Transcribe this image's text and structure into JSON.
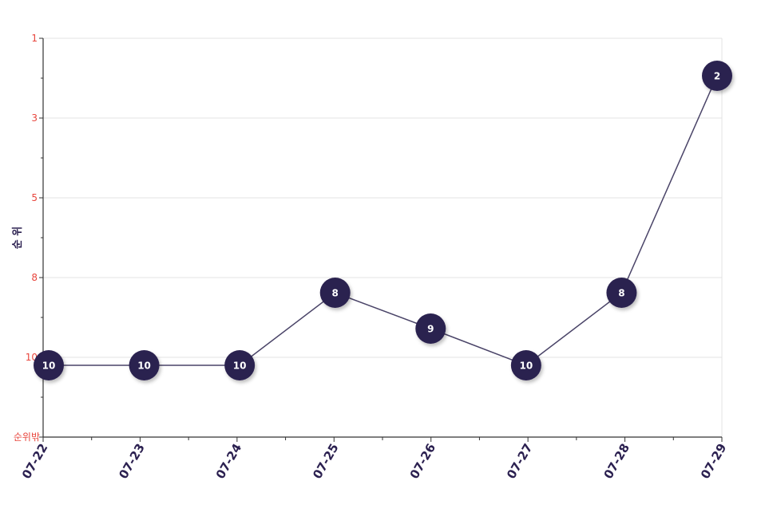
{
  "chart_data": {
    "type": "line",
    "ylabel": "순 위",
    "y_ticks": [
      "1",
      "3",
      "5",
      "8",
      "10",
      "순위밖"
    ],
    "y_inverted": true,
    "grid": true,
    "x": [
      "07-22",
      "07-23",
      "07-24",
      "07-25",
      "07-26",
      "07-27",
      "07-28",
      "07-29"
    ],
    "series": [
      {
        "values": [
          10,
          10,
          10,
          8,
          9,
          10,
          8,
          2
        ]
      }
    ]
  },
  "colors": {
    "point": "#2b2050",
    "line": "#4a4468",
    "tick_label": "#e8453c",
    "axis": "#333333",
    "grid": "#e3e3e3"
  }
}
